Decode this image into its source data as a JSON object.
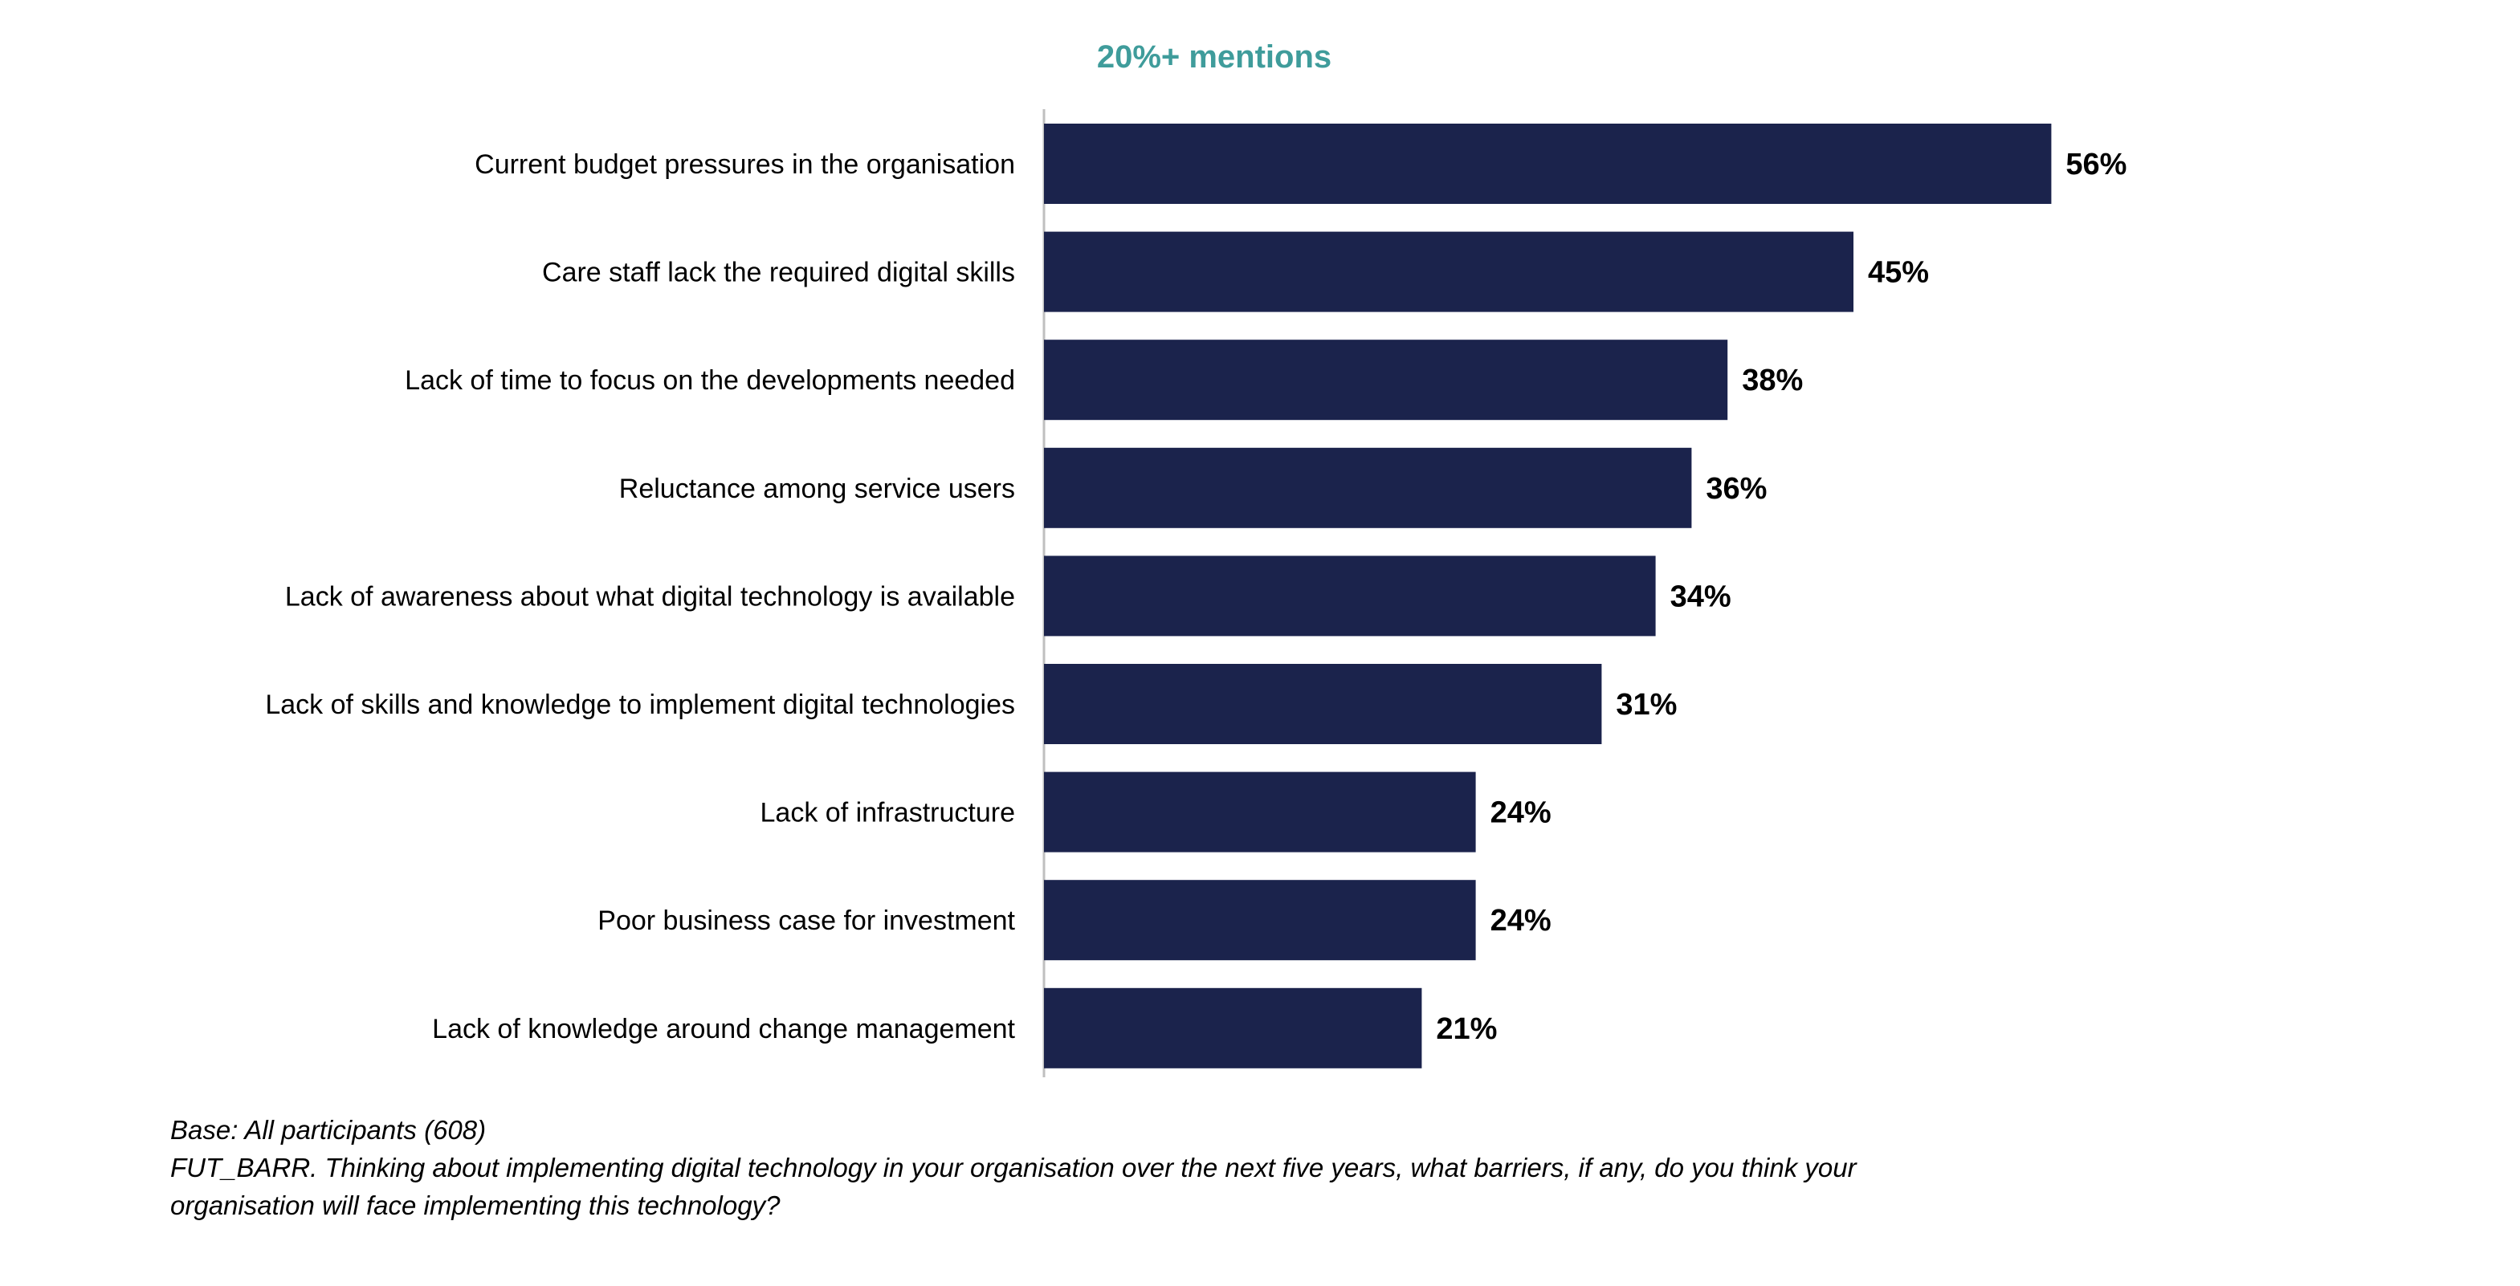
{
  "chart_data": {
    "type": "bar",
    "orientation": "horizontal",
    "title": "20%+ mentions",
    "categories": [
      "Current budget pressures in the organisation",
      "Care staff lack the required digital skills",
      "Lack of time to focus on the developments needed",
      "Reluctance among service users",
      "Lack of awareness about what digital technology is available",
      "Lack of skills and knowledge to implement digital technologies",
      "Lack of infrastructure",
      "Poor business case for investment",
      "Lack of knowledge around change management"
    ],
    "values": [
      56,
      45,
      38,
      36,
      34,
      31,
      24,
      24,
      21
    ],
    "value_labels": [
      "56%",
      "45%",
      "38%",
      "36%",
      "34%",
      "31%",
      "24%",
      "24%",
      "21%"
    ],
    "unit": "%",
    "xlim": [
      0,
      100
    ],
    "xlabel": "",
    "ylabel": "",
    "grid": false,
    "legend": "none"
  },
  "colors": {
    "bar": "#1b234c",
    "title": "#3f9c9b",
    "axis": "#bfbfbf"
  },
  "footnote": {
    "base": "Base: All participants  (608)",
    "question_line1": "FUT_BARR. Thinking about implementing digital technology in your organisation over the next five years, what barriers, if any, do you think your",
    "question_line2": "organisation will face implementing this technology?"
  }
}
